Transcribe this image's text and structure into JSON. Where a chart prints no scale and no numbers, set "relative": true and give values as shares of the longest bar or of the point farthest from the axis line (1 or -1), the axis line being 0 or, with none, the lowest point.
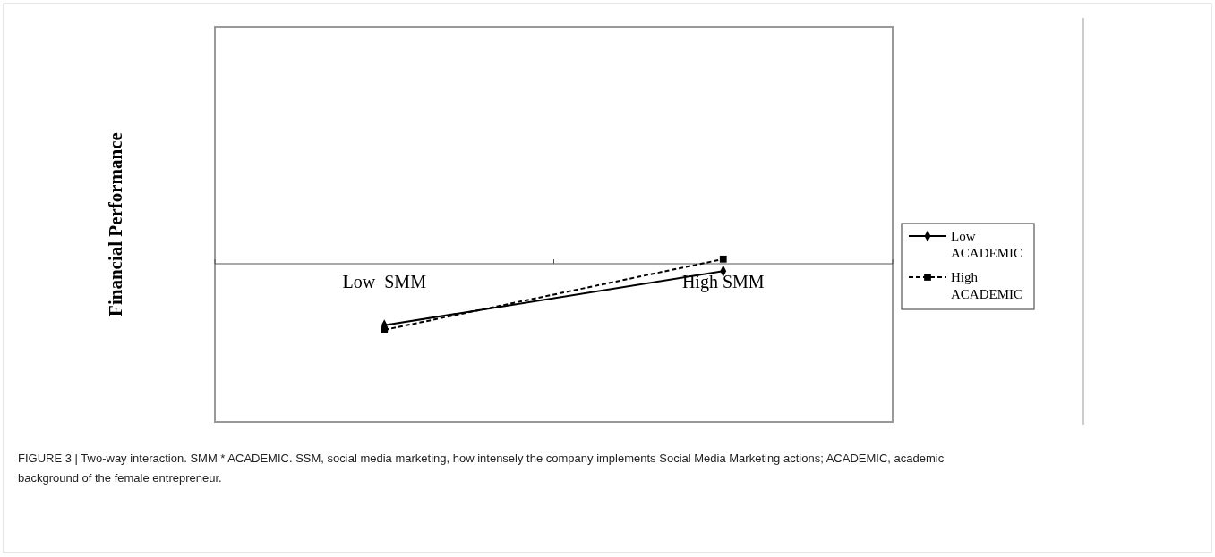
{
  "chart_data": {
    "type": "line",
    "relative": true,
    "ylabel": "Financial Performance",
    "categories": [
      "Low  SMM",
      "High SMM"
    ],
    "series": [
      {
        "name": "Low ACADEMIC",
        "color": "#000000",
        "values": [
          -0.93,
          -0.11
        ],
        "marker": "diamond",
        "line_style": "solid"
      },
      {
        "name": "High ACADEMIC",
        "color": "#000000",
        "values": [
          -1,
          0.07
        ],
        "marker": "square",
        "line_style": "dashed"
      }
    ],
    "legend": "right",
    "annotations": [
      "FIGURE 3 | Two-way interaction. SMM * ACADEMIC. SSM, social media marketing, how intensely the company implements Social Media Marketing actions; ACADEMIC, academic background of the female entrepreneur."
    ]
  }
}
